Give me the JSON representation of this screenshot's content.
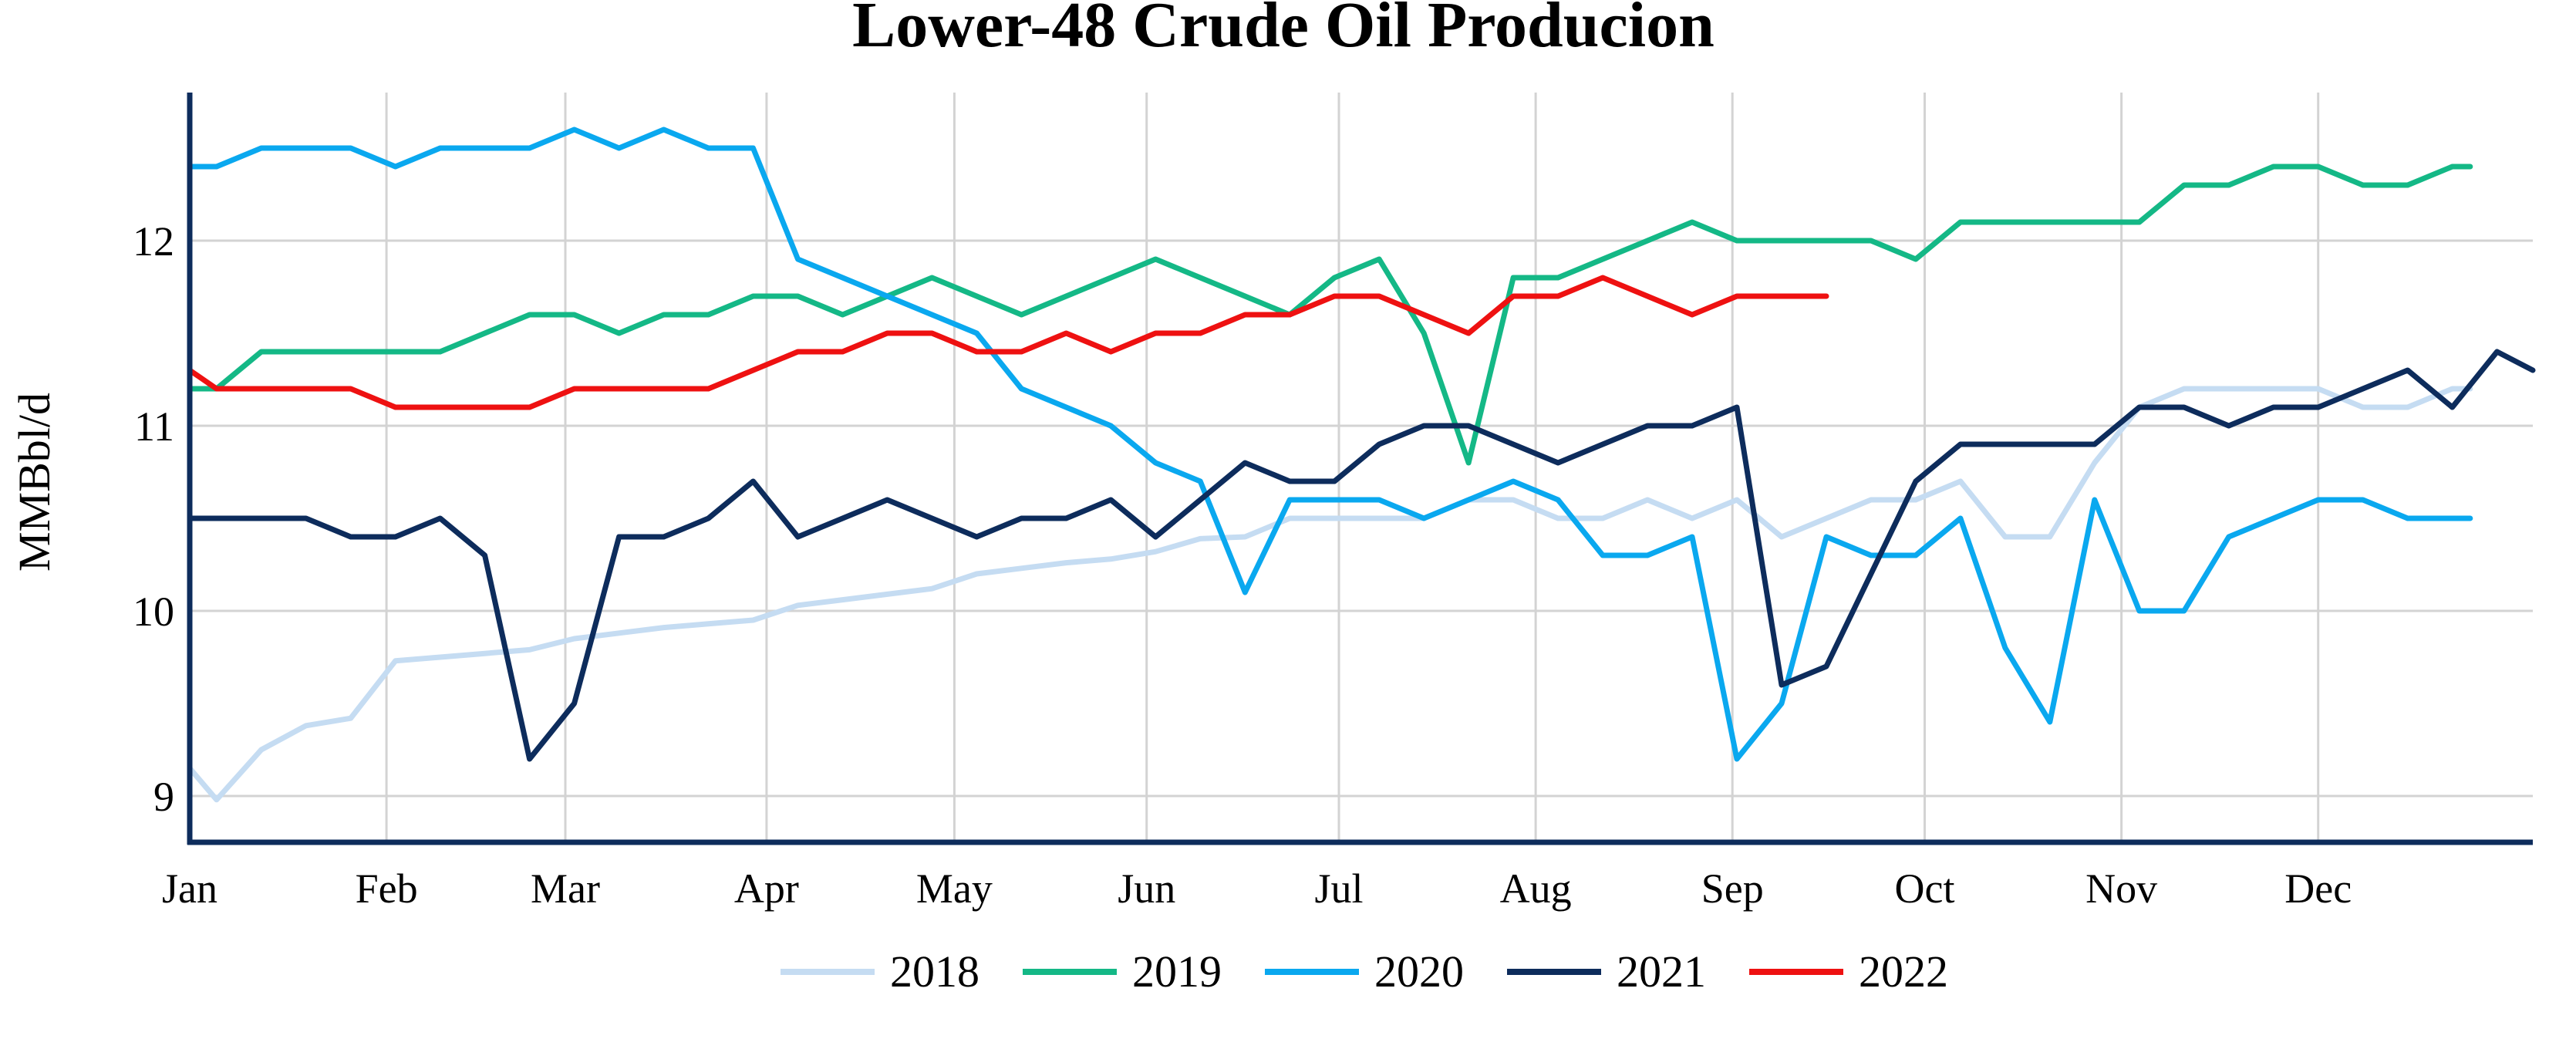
{
  "chart_data": {
    "type": "line",
    "title": "Lower-48 Crude Oil Producion",
    "xlabel": "",
    "ylabel": "MMBbl/d",
    "x_unit": "week_of_year",
    "x_range": [
      1,
      52
    ],
    "ylim": [
      8.75,
      12.8
    ],
    "yticks": [
      9,
      10,
      11,
      12
    ],
    "xtick_labels": [
      "Jan",
      "Feb",
      "Mar",
      "Apr",
      "May",
      "Jun",
      "Jul",
      "Aug",
      "Sep",
      "Oct",
      "Nov",
      "Dec"
    ],
    "xtick_positions": [
      1,
      5.4,
      9.4,
      13.9,
      18.1,
      22.4,
      26.7,
      31.1,
      35.5,
      39.8,
      44.2,
      48.6
    ],
    "grid": true,
    "legend_position": "bottom",
    "series": [
      {
        "name": "2018",
        "color": "#c5dcf2",
        "points": [
          [
            1,
            9.15
          ],
          [
            1.6,
            8.98
          ],
          [
            2.6,
            9.25
          ],
          [
            3.6,
            9.38
          ],
          [
            4.6,
            9.42
          ],
          [
            5.6,
            9.73
          ],
          [
            6.6,
            9.75
          ],
          [
            7.6,
            9.77
          ],
          [
            8.6,
            9.79
          ],
          [
            9.6,
            9.85
          ],
          [
            10.6,
            9.88
          ],
          [
            11.6,
            9.91
          ],
          [
            12.6,
            9.93
          ],
          [
            13.6,
            9.95
          ],
          [
            14.6,
            10.03
          ],
          [
            15.6,
            10.06
          ],
          [
            16.6,
            10.09
          ],
          [
            17.6,
            10.12
          ],
          [
            18.6,
            10.2
          ],
          [
            19.6,
            10.23
          ],
          [
            20.6,
            10.26
          ],
          [
            21.6,
            10.28
          ],
          [
            22.6,
            10.32
          ],
          [
            23.6,
            10.39
          ],
          [
            24.6,
            10.4
          ],
          [
            25.6,
            10.5
          ],
          [
            26.6,
            10.5
          ],
          [
            27.6,
            10.5
          ],
          [
            28.6,
            10.5
          ],
          [
            29.6,
            10.6
          ],
          [
            30.6,
            10.6
          ],
          [
            31.6,
            10.5
          ],
          [
            32.6,
            10.5
          ],
          [
            33.6,
            10.6
          ],
          [
            34.6,
            10.5
          ],
          [
            35.6,
            10.6
          ],
          [
            36.6,
            10.4
          ],
          [
            37.6,
            10.5
          ],
          [
            38.6,
            10.6
          ],
          [
            39.6,
            10.6
          ],
          [
            40.6,
            10.7
          ],
          [
            41.6,
            10.4
          ],
          [
            42.6,
            10.4
          ],
          [
            43.6,
            10.8
          ],
          [
            44.6,
            11.1
          ],
          [
            45.6,
            11.2
          ],
          [
            46.6,
            11.2
          ],
          [
            47.6,
            11.2
          ],
          [
            48.6,
            11.2
          ],
          [
            49.6,
            11.1
          ],
          [
            50.6,
            11.1
          ],
          [
            51.6,
            11.2
          ],
          [
            52,
            11.2
          ]
        ]
      },
      {
        "name": "2019",
        "color": "#14b886",
        "points": [
          [
            1,
            11.2
          ],
          [
            1.6,
            11.2
          ],
          [
            2.6,
            11.4
          ],
          [
            3.6,
            11.4
          ],
          [
            4.6,
            11.4
          ],
          [
            5.6,
            11.4
          ],
          [
            6.6,
            11.4
          ],
          [
            7.6,
            11.5
          ],
          [
            8.6,
            11.6
          ],
          [
            9.6,
            11.6
          ],
          [
            10.6,
            11.5
          ],
          [
            11.6,
            11.6
          ],
          [
            12.6,
            11.6
          ],
          [
            13.6,
            11.7
          ],
          [
            14.6,
            11.7
          ],
          [
            15.6,
            11.6
          ],
          [
            16.6,
            11.7
          ],
          [
            17.6,
            11.8
          ],
          [
            18.6,
            11.7
          ],
          [
            19.6,
            11.6
          ],
          [
            20.6,
            11.7
          ],
          [
            21.6,
            11.8
          ],
          [
            22.6,
            11.9
          ],
          [
            23.6,
            11.8
          ],
          [
            24.6,
            11.7
          ],
          [
            25.6,
            11.6
          ],
          [
            26.6,
            11.8
          ],
          [
            27.6,
            11.9
          ],
          [
            28.6,
            11.5
          ],
          [
            29.6,
            10.8
          ],
          [
            30.6,
            11.8
          ],
          [
            31.6,
            11.8
          ],
          [
            32.6,
            11.9
          ],
          [
            33.6,
            12
          ],
          [
            34.6,
            12.1
          ],
          [
            35.6,
            12
          ],
          [
            36.6,
            12
          ],
          [
            37.6,
            12
          ],
          [
            38.6,
            12
          ],
          [
            39.6,
            11.9
          ],
          [
            40.6,
            12.1
          ],
          [
            41.6,
            12.1
          ],
          [
            42.6,
            12.1
          ],
          [
            43.6,
            12.1
          ],
          [
            44.6,
            12.1
          ],
          [
            45.6,
            12.3
          ],
          [
            46.6,
            12.3
          ],
          [
            47.6,
            12.4
          ],
          [
            48.6,
            12.4
          ],
          [
            49.6,
            12.3
          ],
          [
            50.6,
            12.3
          ],
          [
            51.6,
            12.4
          ],
          [
            52,
            12.4
          ]
        ]
      },
      {
        "name": "2020",
        "color": "#0aa8ef",
        "points": [
          [
            1,
            12.4
          ],
          [
            1.6,
            12.4
          ],
          [
            2.6,
            12.5
          ],
          [
            3.6,
            12.5
          ],
          [
            4.6,
            12.5
          ],
          [
            5.6,
            12.4
          ],
          [
            6.6,
            12.5
          ],
          [
            7.6,
            12.5
          ],
          [
            8.6,
            12.5
          ],
          [
            9.6,
            12.6
          ],
          [
            10.6,
            12.5
          ],
          [
            11.6,
            12.6
          ],
          [
            12.6,
            12.5
          ],
          [
            13.6,
            12.5
          ],
          [
            14.6,
            11.9
          ],
          [
            15.6,
            11.8
          ],
          [
            16.6,
            11.7
          ],
          [
            17.6,
            11.6
          ],
          [
            18.6,
            11.5
          ],
          [
            19.6,
            11.2
          ],
          [
            20.6,
            11.1
          ],
          [
            21.6,
            11
          ],
          [
            22.6,
            10.8
          ],
          [
            23.6,
            10.7
          ],
          [
            24.6,
            10.1
          ],
          [
            25.6,
            10.6
          ],
          [
            26.6,
            10.6
          ],
          [
            27.6,
            10.6
          ],
          [
            28.6,
            10.5
          ],
          [
            29.6,
            10.6
          ],
          [
            30.6,
            10.7
          ],
          [
            31.6,
            10.6
          ],
          [
            32.6,
            10.3
          ],
          [
            33.6,
            10.3
          ],
          [
            34.6,
            10.4
          ],
          [
            35.6,
            9.2
          ],
          [
            36.6,
            9.5
          ],
          [
            37.6,
            10.4
          ],
          [
            38.6,
            10.3
          ],
          [
            39.6,
            10.3
          ],
          [
            40.6,
            10.5
          ],
          [
            41.6,
            9.8
          ],
          [
            42.6,
            9.4
          ],
          [
            43.6,
            10.6
          ],
          [
            44.6,
            10
          ],
          [
            45.6,
            10
          ],
          [
            46.6,
            10.4
          ],
          [
            47.6,
            10.5
          ],
          [
            48.6,
            10.6
          ],
          [
            49.6,
            10.6
          ],
          [
            50.6,
            10.5
          ],
          [
            51.6,
            10.5
          ],
          [
            52,
            10.5
          ]
        ]
      },
      {
        "name": "2021",
        "color": "#0d2c5c",
        "points": [
          [
            1,
            10.5
          ],
          [
            1.6,
            10.5
          ],
          [
            2.6,
            10.5
          ],
          [
            3.6,
            10.5
          ],
          [
            4.6,
            10.4
          ],
          [
            5.6,
            10.4
          ],
          [
            6.6,
            10.5
          ],
          [
            7.6,
            10.3
          ],
          [
            8.6,
            9.2
          ],
          [
            9.6,
            9.5
          ],
          [
            10.6,
            10.4
          ],
          [
            11.6,
            10.4
          ],
          [
            12.6,
            10.5
          ],
          [
            13.6,
            10.7
          ],
          [
            14.6,
            10.4
          ],
          [
            15.6,
            10.5
          ],
          [
            16.6,
            10.6
          ],
          [
            17.6,
            10.5
          ],
          [
            18.6,
            10.4
          ],
          [
            19.6,
            10.5
          ],
          [
            20.6,
            10.5
          ],
          [
            21.6,
            10.6
          ],
          [
            22.6,
            10.4
          ],
          [
            23.6,
            10.6
          ],
          [
            24.6,
            10.8
          ],
          [
            25.6,
            10.7
          ],
          [
            26.6,
            10.7
          ],
          [
            27.6,
            10.9
          ],
          [
            28.6,
            11
          ],
          [
            29.6,
            11
          ],
          [
            30.6,
            10.9
          ],
          [
            31.6,
            10.8
          ],
          [
            32.6,
            10.9
          ],
          [
            33.6,
            11
          ],
          [
            34.6,
            11
          ],
          [
            35.6,
            11.1
          ],
          [
            36.6,
            9.6
          ],
          [
            37.6,
            9.7
          ],
          [
            38.6,
            10.2
          ],
          [
            39.6,
            10.7
          ],
          [
            40.6,
            10.9
          ],
          [
            41.6,
            10.9
          ],
          [
            42.6,
            10.9
          ],
          [
            43.6,
            10.9
          ],
          [
            44.6,
            11.1
          ],
          [
            45.6,
            11.1
          ],
          [
            46.6,
            11
          ],
          [
            47.6,
            11.1
          ],
          [
            48.6,
            11.1
          ],
          [
            49.6,
            11.2
          ],
          [
            50.6,
            11.3
          ],
          [
            51.6,
            11.1
          ],
          [
            52.6,
            11.4
          ],
          [
            53.4,
            11.3
          ]
        ]
      },
      {
        "name": "2022",
        "color": "#ee1111",
        "points": [
          [
            1,
            11.3
          ],
          [
            1.6,
            11.2
          ],
          [
            2.6,
            11.2
          ],
          [
            3.6,
            11.2
          ],
          [
            4.6,
            11.2
          ],
          [
            5.6,
            11.1
          ],
          [
            6.6,
            11.1
          ],
          [
            7.6,
            11.1
          ],
          [
            8.6,
            11.1
          ],
          [
            9.6,
            11.2
          ],
          [
            10.6,
            11.2
          ],
          [
            11.6,
            11.2
          ],
          [
            12.6,
            11.2
          ],
          [
            13.6,
            11.3
          ],
          [
            14.6,
            11.4
          ],
          [
            15.6,
            11.4
          ],
          [
            16.6,
            11.5
          ],
          [
            17.6,
            11.5
          ],
          [
            18.6,
            11.4
          ],
          [
            19.6,
            11.4
          ],
          [
            20.6,
            11.5
          ],
          [
            21.6,
            11.4
          ],
          [
            22.6,
            11.5
          ],
          [
            23.6,
            11.5
          ],
          [
            24.6,
            11.6
          ],
          [
            25.6,
            11.6
          ],
          [
            26.6,
            11.7
          ],
          [
            27.6,
            11.7
          ],
          [
            28.6,
            11.6
          ],
          [
            29.6,
            11.5
          ],
          [
            30.6,
            11.7
          ],
          [
            31.6,
            11.7
          ],
          [
            32.6,
            11.8
          ],
          [
            33.6,
            11.7
          ],
          [
            34.6,
            11.6
          ],
          [
            35.6,
            11.7
          ],
          [
            36.6,
            11.7
          ],
          [
            37.6,
            11.7
          ]
        ]
      }
    ]
  }
}
